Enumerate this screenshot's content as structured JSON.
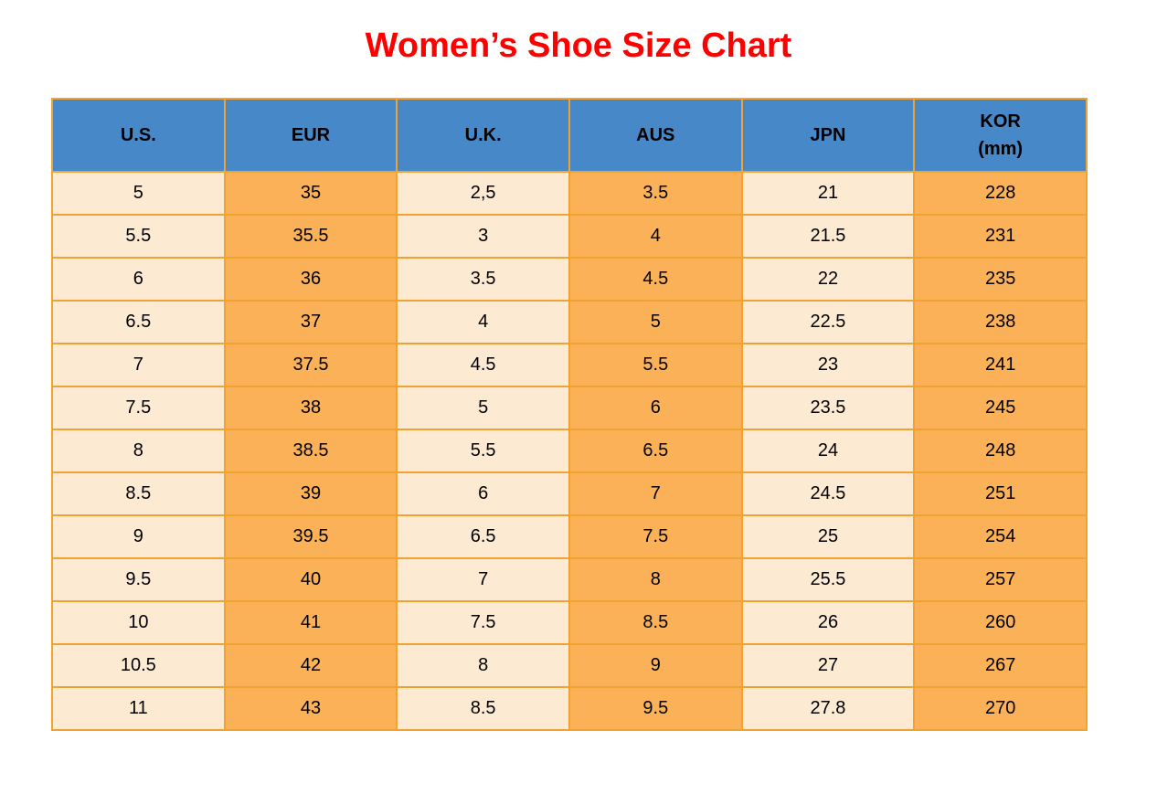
{
  "title": "Women’s Shoe Size Chart",
  "colors": {
    "title_red": "#ff0000",
    "header_blue": "#4688c8",
    "col_cream": "#fdead2",
    "col_orange": "#fbb157",
    "grid_border": "#f0a232",
    "text": "#000000",
    "background": "#ffffff"
  },
  "table": {
    "display_headers": [
      "U.S.",
      "EUR",
      "U.K.",
      "AUS",
      "JPN",
      "KOR\n(mm)"
    ]
  },
  "chart_data": {
    "type": "table",
    "title": "Women’s Shoe Size Chart",
    "columns": [
      "U.S.",
      "EUR",
      "U.K.",
      "AUS",
      "JPN",
      "KOR (mm)"
    ],
    "rows": [
      [
        "5",
        "35",
        "2,5",
        "3.5",
        "21",
        "228"
      ],
      [
        "5.5",
        "35.5",
        "3",
        "4",
        "21.5",
        "231"
      ],
      [
        "6",
        "36",
        "3.5",
        "4.5",
        "22",
        "235"
      ],
      [
        "6.5",
        "37",
        "4",
        "5",
        "22.5",
        "238"
      ],
      [
        "7",
        "37.5",
        "4.5",
        "5.5",
        "23",
        "241"
      ],
      [
        "7.5",
        "38",
        "5",
        "6",
        "23.5",
        "245"
      ],
      [
        "8",
        "38.5",
        "5.5",
        "6.5",
        "24",
        "248"
      ],
      [
        "8.5",
        "39",
        "6",
        "7",
        "24.5",
        "251"
      ],
      [
        "9",
        "39.5",
        "6.5",
        "7.5",
        "25",
        "254"
      ],
      [
        "9.5",
        "40",
        "7",
        "8",
        "25.5",
        "257"
      ],
      [
        "10",
        "41",
        "7.5",
        "8.5",
        "26",
        "260"
      ],
      [
        "10.5",
        "42",
        "8",
        "9",
        "27",
        "267"
      ],
      [
        "11",
        "43",
        "8.5",
        "9.5",
        "27.8",
        "270"
      ]
    ]
  }
}
